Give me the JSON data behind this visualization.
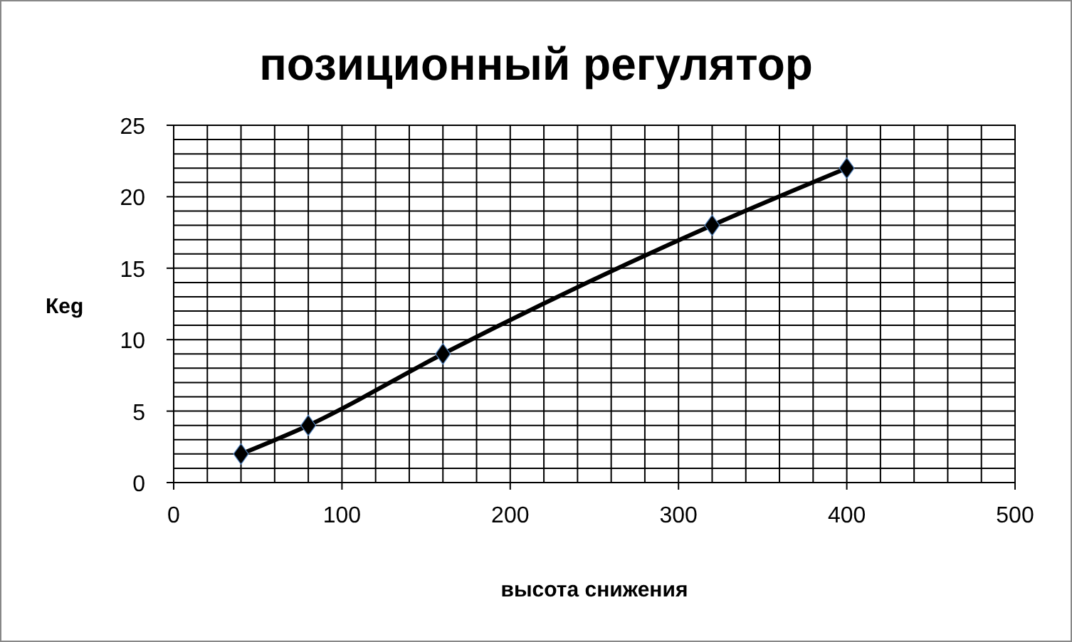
{
  "chart_data": {
    "type": "line",
    "title": "позиционный регулятор",
    "xlabel": "высота снижения",
    "ylabel": "Кeg",
    "x": [
      40,
      80,
      160,
      320,
      400
    ],
    "series": [
      {
        "color": "#000000",
        "values": [
          2,
          4,
          9,
          18,
          22
        ]
      }
    ],
    "xlim": [
      0,
      500
    ],
    "xticks": [
      0,
      100,
      200,
      300,
      400,
      500
    ],
    "ylim": [
      0,
      25
    ],
    "yticks": [
      0,
      5,
      10,
      15,
      20,
      25
    ],
    "grid": true,
    "marker": "diamond",
    "line_style": "solid"
  }
}
